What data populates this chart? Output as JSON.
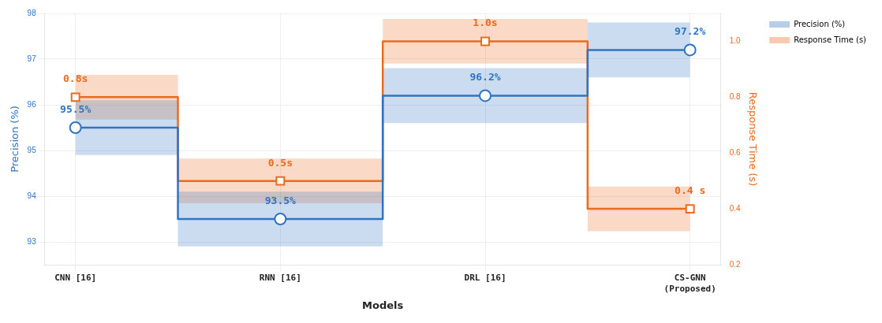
{
  "chart_data": {
    "type": "step",
    "categories": [
      "CNN [16]",
      "RNN [16]",
      "DRL [16]",
      "CS-GNN\n(Proposed)"
    ],
    "xlabel": "Models",
    "ylabel": "Precision (%)",
    "y2label": "Response Time (s)",
    "ylim": [
      92.5,
      98
    ],
    "yticks": [
      93,
      94,
      95,
      96,
      97,
      98
    ],
    "y2lim": [
      0.2,
      1.1
    ],
    "y2ticks": [
      {
        "value": 0.2,
        "label": "0.2"
      },
      {
        "value": 0.4,
        "label": "0.4"
      },
      {
        "value": 0.6,
        "label": "0.6"
      },
      {
        "value": 0.8,
        "label": "0.8"
      },
      {
        "value": 1.0,
        "label": "1.0"
      }
    ],
    "series": [
      {
        "name": "Precision (%)",
        "color": "#2f74c4",
        "values": [
          95.5,
          93.5,
          96.2,
          97.2
        ],
        "lower": [
          94.9,
          92.9,
          95.6,
          96.6
        ],
        "upper": [
          96.1,
          94.1,
          96.8,
          97.8
        ],
        "marker": "circle",
        "value_labels": [
          "95.5%",
          "93.5%",
          "96.2%",
          "97.2%"
        ]
      },
      {
        "name": "Response Time (s)",
        "color": "#ec6a1e",
        "axis": "y2",
        "values": [
          0.8,
          0.5,
          1.0,
          0.4
        ],
        "lower": [
          0.72,
          0.42,
          0.92,
          0.32
        ],
        "upper": [
          0.88,
          0.58,
          1.08,
          0.48
        ],
        "marker": "square",
        "value_labels": [
          "0.8s",
          "0.5s",
          "1.0s",
          "0.4 s"
        ]
      }
    ],
    "line_style": "solid",
    "grid": true,
    "legend": "top right"
  }
}
